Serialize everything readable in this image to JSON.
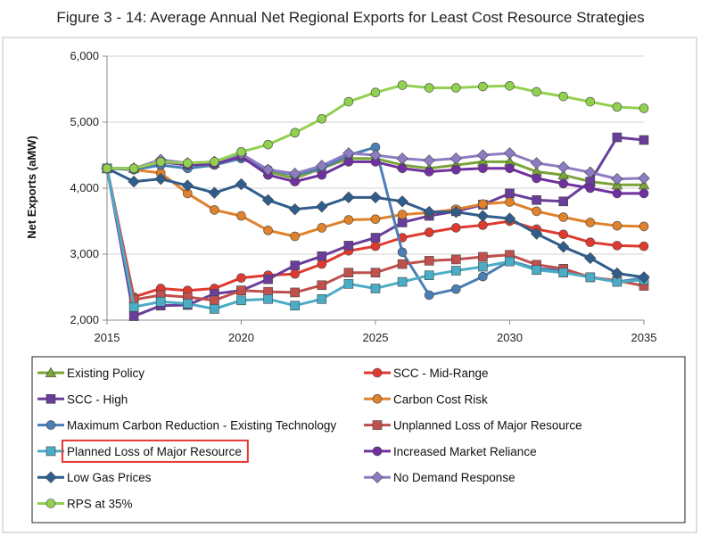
{
  "chart_data": {
    "type": "line",
    "title": "Figure 3 - 14: Average Annual Net Regional Exports for Least Cost Resource Strategies",
    "xlabel": "",
    "ylabel": "Net Exports (aMW)",
    "xlim": [
      2015,
      2035
    ],
    "ylim": [
      2000,
      6000
    ],
    "x_ticks": [
      "2015",
      "2020",
      "2025",
      "2030",
      "2035"
    ],
    "y_ticks": [
      "2,000",
      "3,000",
      "4,000",
      "5,000",
      "6,000"
    ],
    "grid": true,
    "legend_position": "bottom",
    "x": [
      2015,
      2016,
      2017,
      2018,
      2019,
      2020,
      2021,
      2022,
      2023,
      2024,
      2025,
      2026,
      2027,
      2028,
      2029,
      2030,
      2031,
      2032,
      2033,
      2034,
      2035
    ],
    "series": [
      {
        "name": "Existing Policy",
        "color": "#7aa43a",
        "marker": "triangle",
        "values": [
          4300,
          4300,
          4420,
          4350,
          4380,
          4500,
          4250,
          4150,
          4300,
          4450,
          4450,
          4350,
          4300,
          4350,
          4400,
          4400,
          4250,
          4200,
          4100,
          4050,
          4050
        ]
      },
      {
        "name": "SCC - Mid-Range",
        "color": "#e03a2f",
        "marker": "circle",
        "values": [
          4300,
          2350,
          2480,
          2450,
          2480,
          2640,
          2680,
          2700,
          2850,
          3050,
          3120,
          3250,
          3330,
          3400,
          3440,
          3500,
          3380,
          3300,
          3180,
          3130,
          3120
        ]
      },
      {
        "name": "SCC - High",
        "color": "#6a3d9a",
        "marker": "square",
        "values": [
          4300,
          2060,
          2220,
          2230,
          2400,
          2450,
          2620,
          2830,
          2970,
          3130,
          3250,
          3480,
          3580,
          3650,
          3750,
          3920,
          3820,
          3800,
          4100,
          4770,
          4730
        ]
      },
      {
        "name": "Carbon Cost Risk",
        "color": "#e0822b",
        "marker": "circle",
        "values": [
          4300,
          4280,
          4230,
          3920,
          3670,
          3580,
          3360,
          3270,
          3400,
          3520,
          3530,
          3600,
          3630,
          3680,
          3760,
          3790,
          3650,
          3560,
          3480,
          3430,
          3420
        ]
      },
      {
        "name": "Maximum Carbon Reduction - Existing Technology",
        "color": "#4a7eb5",
        "marker": "circle",
        "values": [
          4300,
          4280,
          4350,
          4300,
          4350,
          4450,
          4280,
          4200,
          4300,
          4500,
          4620,
          3030,
          2380,
          2470,
          2660,
          2900,
          2780,
          2760,
          2650,
          2580,
          2640
        ]
      },
      {
        "name": "Unplanned Loss of Major Resource",
        "color": "#c0504d",
        "marker": "square",
        "values": [
          4300,
          2310,
          2380,
          2350,
          2300,
          2450,
          2430,
          2420,
          2530,
          2720,
          2720,
          2850,
          2900,
          2920,
          2960,
          2990,
          2840,
          2780,
          2650,
          2600,
          2520
        ]
      },
      {
        "name": "Planned Loss of Major Resource",
        "color": "#4bacc6",
        "marker": "square",
        "values": [
          4300,
          2200,
          2280,
          2250,
          2170,
          2300,
          2320,
          2220,
          2320,
          2550,
          2480,
          2580,
          2680,
          2750,
          2810,
          2890,
          2760,
          2720,
          2650,
          2580,
          2610
        ]
      },
      {
        "name": "Increased Market Reliance",
        "color": "#7030a0",
        "marker": "circle",
        "values": [
          4300,
          4300,
          4400,
          4350,
          4370,
          4480,
          4200,
          4100,
          4200,
          4400,
          4400,
          4300,
          4250,
          4280,
          4300,
          4300,
          4150,
          4070,
          4000,
          3920,
          3920
        ]
      },
      {
        "name": "Low Gas Prices",
        "color": "#2f5d8c",
        "marker": "diamond",
        "values": [
          4300,
          4100,
          4140,
          4040,
          3930,
          4060,
          3820,
          3680,
          3720,
          3860,
          3860,
          3800,
          3640,
          3640,
          3580,
          3540,
          3310,
          3110,
          2940,
          2710,
          2650
        ]
      },
      {
        "name": "No Demand Response",
        "color": "#8e7cc3",
        "marker": "diamond",
        "values": [
          4300,
          4300,
          4430,
          4380,
          4400,
          4520,
          4280,
          4220,
          4340,
          4530,
          4500,
          4450,
          4420,
          4450,
          4500,
          4530,
          4380,
          4320,
          4240,
          4140,
          4150
        ]
      },
      {
        "name": "RPS at 35%",
        "color": "#92d050",
        "marker": "circle",
        "values": [
          4300,
          4300,
          4400,
          4380,
          4400,
          4550,
          4660,
          4840,
          5050,
          5310,
          5450,
          5560,
          5520,
          5520,
          5540,
          5550,
          5460,
          5390,
          5310,
          5230,
          5210
        ]
      }
    ],
    "highlighted_legend_entry": "Planned Loss of Major Resource"
  }
}
